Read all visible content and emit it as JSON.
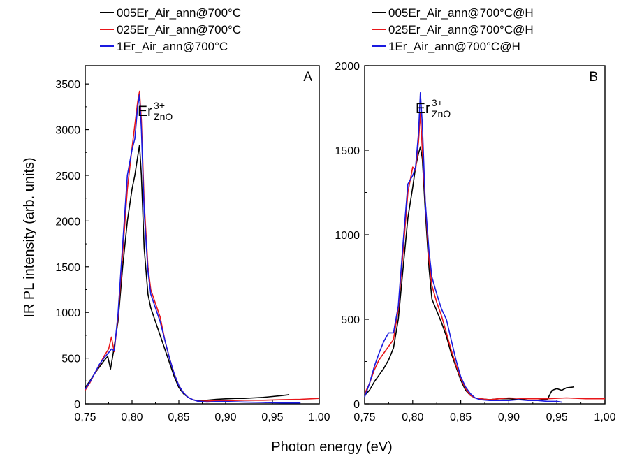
{
  "chart_data": [
    {
      "type": "line",
      "panel": "A",
      "ylabel": "IR PL intensity (arb. units)",
      "xlabel": "Photon energy (eV)",
      "xlim": [
        0.75,
        1.0
      ],
      "ylim": [
        0,
        3700
      ],
      "xticks": [
        "0,75",
        "0,80",
        "0,85",
        "0,90",
        "0,95",
        "1,00"
      ],
      "yticks": [
        "0",
        "500",
        "1000",
        "1500",
        "2000",
        "2500",
        "3000",
        "3500"
      ],
      "yticks_values": [
        0,
        500,
        1000,
        1500,
        2000,
        2500,
        3000,
        3500
      ],
      "xticks_values": [
        0.75,
        0.8,
        0.85,
        0.9,
        0.95,
        1.0
      ],
      "annotation": {
        "base": "Er",
        "sup": "3+",
        "sub": "ZnO",
        "x": 0.806,
        "y": 3150
      },
      "grid": false,
      "legend_placement": "top",
      "series": [
        {
          "name": "005Er_Air_ann@700°C",
          "color": "#000000",
          "x": [
            0.75,
            0.755,
            0.76,
            0.765,
            0.77,
            0.774,
            0.777,
            0.78,
            0.785,
            0.79,
            0.795,
            0.8,
            0.803,
            0.806,
            0.808,
            0.81,
            0.813,
            0.817,
            0.82,
            0.825,
            0.83,
            0.835,
            0.84,
            0.845,
            0.85,
            0.855,
            0.86,
            0.865,
            0.87,
            0.88,
            0.89,
            0.9,
            0.91,
            0.92,
            0.93,
            0.94,
            0.95,
            0.96,
            0.968
          ],
          "y": [
            180,
            250,
            330,
            400,
            470,
            520,
            380,
            560,
            900,
            1500,
            2000,
            2350,
            2500,
            2700,
            2830,
            2500,
            1700,
            1200,
            1050,
            900,
            750,
            600,
            450,
            300,
            180,
            110,
            70,
            45,
            35,
            40,
            50,
            55,
            60,
            60,
            65,
            70,
            80,
            90,
            100
          ]
        },
        {
          "name": "025Er_Air_ann@700°C",
          "color": "#e8161a",
          "x": [
            0.75,
            0.755,
            0.76,
            0.765,
            0.77,
            0.775,
            0.778,
            0.781,
            0.785,
            0.79,
            0.795,
            0.8,
            0.803,
            0.806,
            0.808,
            0.81,
            0.813,
            0.817,
            0.82,
            0.825,
            0.83,
            0.835,
            0.84,
            0.845,
            0.85,
            0.855,
            0.86,
            0.865,
            0.87,
            0.88,
            0.89,
            0.9,
            0.92,
            0.94,
            0.96,
            0.98,
            1.0
          ],
          "y": [
            150,
            230,
            330,
            420,
            520,
            600,
            730,
            570,
            950,
            1650,
            2350,
            2800,
            3050,
            3300,
            3420,
            3100,
            2200,
            1500,
            1250,
            1100,
            950,
            700,
            500,
            330,
            200,
            120,
            70,
            45,
            30,
            30,
            35,
            35,
            40,
            40,
            45,
            50,
            60
          ]
        },
        {
          "name": "1Er_Air_ann@700°C",
          "color": "#1a1ae0",
          "x": [
            0.75,
            0.755,
            0.76,
            0.765,
            0.77,
            0.775,
            0.778,
            0.781,
            0.785,
            0.79,
            0.795,
            0.8,
            0.803,
            0.806,
            0.808,
            0.81,
            0.813,
            0.817,
            0.82,
            0.825,
            0.83,
            0.835,
            0.84,
            0.845,
            0.85,
            0.855,
            0.86,
            0.865,
            0.87,
            0.88,
            0.89,
            0.9,
            0.92,
            0.94,
            0.96,
            0.98
          ],
          "y": [
            160,
            240,
            330,
            430,
            500,
            560,
            600,
            580,
            980,
            1750,
            2500,
            2780,
            2900,
            3250,
            3380,
            3000,
            2100,
            1450,
            1200,
            1050,
            900,
            700,
            500,
            330,
            200,
            120,
            70,
            45,
            30,
            20,
            25,
            25,
            20,
            15,
            10,
            10
          ]
        }
      ]
    },
    {
      "type": "line",
      "panel": "B",
      "xlabel": "Photon energy (eV)",
      "xlim": [
        0.75,
        1.0
      ],
      "ylim": [
        0,
        2000
      ],
      "xticks": [
        "0,75",
        "0,80",
        "0,85",
        "0,90",
        "0,95",
        "1,00"
      ],
      "yticks": [
        "0",
        "500",
        "1000",
        "1500",
        "2000"
      ],
      "yticks_values": [
        0,
        500,
        1000,
        1500,
        2000
      ],
      "xticks_values": [
        0.75,
        0.8,
        0.85,
        0.9,
        0.95,
        1.0
      ],
      "annotation": {
        "base": "Er",
        "sup": "3+",
        "sub": "ZnO",
        "x": 0.803,
        "y": 1720
      },
      "grid": false,
      "legend_placement": "top",
      "series": [
        {
          "name": "005Er_Air_ann@700°C@H",
          "color": "#000000",
          "x": [
            0.75,
            0.755,
            0.76,
            0.765,
            0.77,
            0.775,
            0.78,
            0.785,
            0.79,
            0.795,
            0.8,
            0.803,
            0.806,
            0.808,
            0.81,
            0.813,
            0.817,
            0.82,
            0.825,
            0.83,
            0.835,
            0.84,
            0.845,
            0.85,
            0.855,
            0.86,
            0.865,
            0.87,
            0.88,
            0.89,
            0.9,
            0.91,
            0.92,
            0.93,
            0.94,
            0.945,
            0.95,
            0.955,
            0.96,
            0.968
          ],
          "y": [
            50,
            80,
            130,
            170,
            210,
            260,
            330,
            500,
            800,
            1100,
            1280,
            1400,
            1480,
            1520,
            1450,
            1150,
            800,
            620,
            550,
            480,
            400,
            300,
            220,
            140,
            80,
            50,
            35,
            30,
            25,
            30,
            30,
            25,
            30,
            30,
            25,
            80,
            90,
            80,
            95,
            100
          ]
        },
        {
          "name": "025Er_Air_ann@700°C@H",
          "color": "#e8161a",
          "x": [
            0.75,
            0.755,
            0.76,
            0.765,
            0.77,
            0.775,
            0.78,
            0.785,
            0.79,
            0.795,
            0.8,
            0.803,
            0.806,
            0.808,
            0.81,
            0.813,
            0.817,
            0.82,
            0.825,
            0.83,
            0.835,
            0.84,
            0.845,
            0.85,
            0.855,
            0.86,
            0.865,
            0.87,
            0.88,
            0.89,
            0.9,
            0.92,
            0.94,
            0.96,
            0.98,
            1.0
          ],
          "y": [
            60,
            120,
            200,
            260,
            300,
            340,
            380,
            560,
            900,
            1250,
            1400,
            1380,
            1550,
            1720,
            1500,
            1200,
            850,
            700,
            600,
            520,
            420,
            320,
            230,
            150,
            90,
            50,
            35,
            30,
            25,
            30,
            35,
            30,
            30,
            35,
            30,
            30
          ]
        },
        {
          "name": "1Er_Air_ann@700°C@H",
          "color": "#1a1ae0",
          "x": [
            0.75,
            0.755,
            0.76,
            0.765,
            0.77,
            0.775,
            0.78,
            0.785,
            0.79,
            0.795,
            0.8,
            0.803,
            0.806,
            0.808,
            0.81,
            0.813,
            0.817,
            0.82,
            0.825,
            0.83,
            0.835,
            0.84,
            0.845,
            0.85,
            0.855,
            0.86,
            0.865,
            0.87,
            0.88,
            0.89,
            0.9,
            0.91,
            0.92,
            0.93,
            0.94,
            0.95,
            0.955
          ],
          "y": [
            40,
            120,
            220,
            300,
            370,
            420,
            420,
            580,
            950,
            1300,
            1350,
            1400,
            1600,
            1840,
            1650,
            1200,
            900,
            750,
            650,
            560,
            500,
            380,
            260,
            160,
            100,
            60,
            35,
            25,
            20,
            20,
            20,
            25,
            20,
            20,
            15,
            15,
            10
          ]
        }
      ]
    }
  ]
}
